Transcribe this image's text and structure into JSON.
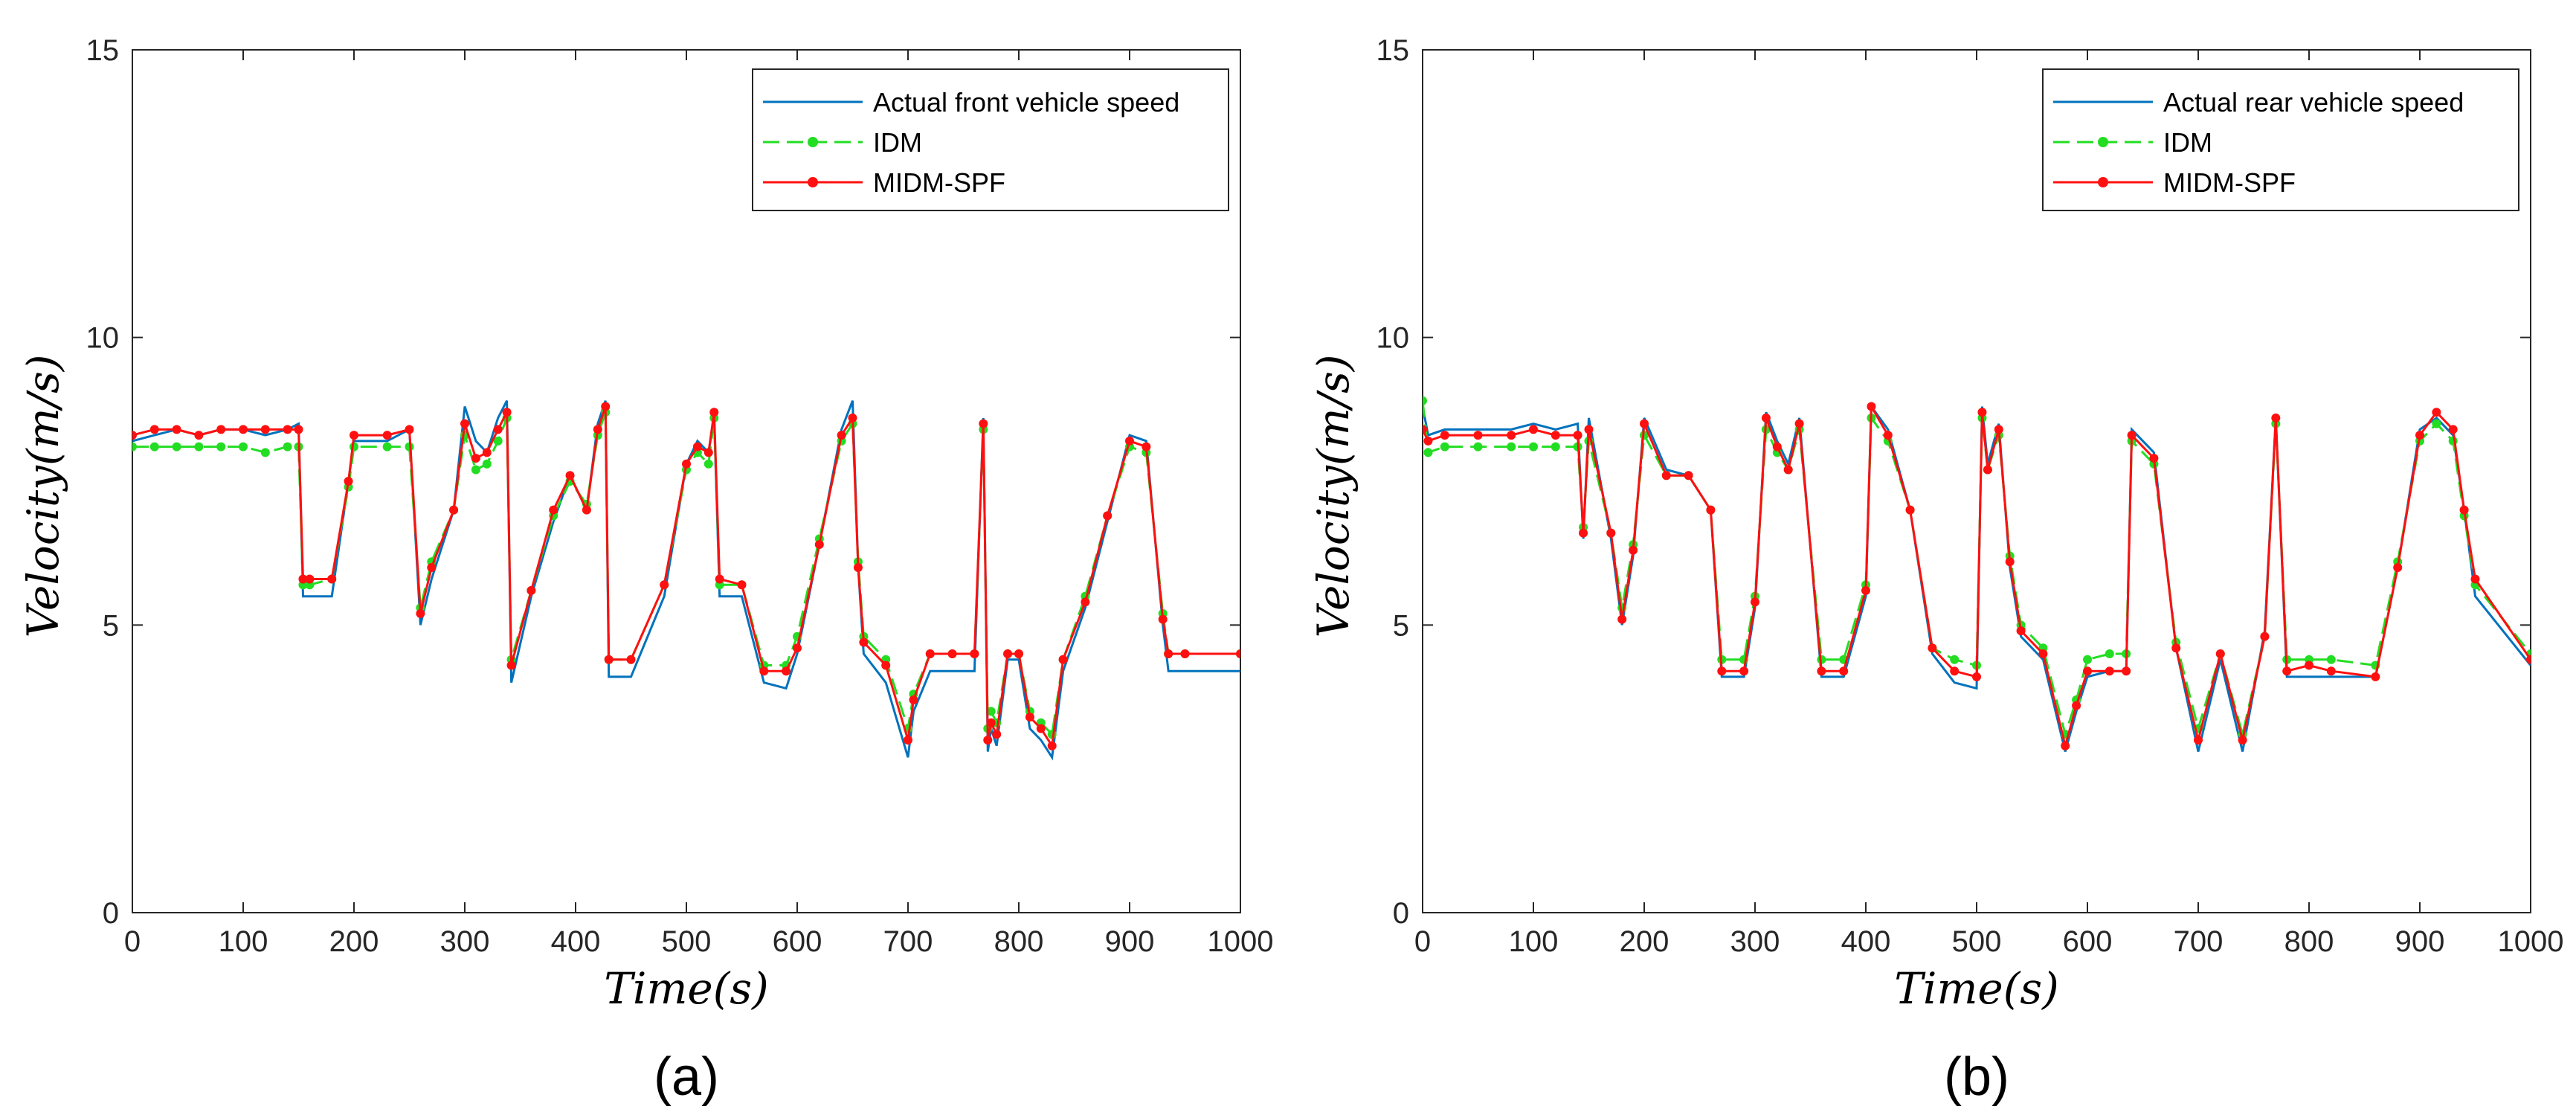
{
  "colors": {
    "actual": "#0072BD",
    "idm": "#22DD22",
    "midm": "#FF1010"
  },
  "chart_data": [
    {
      "type": "line",
      "panel_label": "(a)",
      "xlabel": "Time(s)",
      "ylabel": "Velocity(m/s)",
      "xlim": [
        0,
        1000
      ],
      "ylim": [
        0,
        15
      ],
      "xticks": [
        0,
        100,
        200,
        300,
        400,
        500,
        600,
        700,
        800,
        900,
        1000
      ],
      "yticks": [
        0,
        5,
        10,
        15
      ],
      "legend": {
        "position": "top-right",
        "entries": [
          "Actual front vehicle speed",
          "IDM",
          "MIDM-SPF"
        ]
      },
      "series": [
        {
          "name": "Actual front vehicle speed",
          "role": "actual",
          "x": [
            0,
            20,
            40,
            60,
            80,
            100,
            120,
            140,
            150,
            154,
            160,
            180,
            195,
            200,
            230,
            250,
            260,
            270,
            290,
            300,
            310,
            320,
            330,
            338,
            342,
            360,
            380,
            395,
            410,
            420,
            427,
            430,
            450,
            480,
            500,
            510,
            520,
            525,
            530,
            550,
            570,
            590,
            600,
            620,
            640,
            650,
            655,
            660,
            680,
            700,
            705,
            720,
            740,
            760,
            768,
            772,
            775,
            780,
            790,
            800,
            810,
            820,
            830,
            840,
            860,
            880,
            900,
            915,
            930,
            935,
            950,
            1000
          ],
          "y": [
            8.2,
            8.3,
            8.4,
            8.3,
            8.4,
            8.4,
            8.3,
            8.4,
            8.5,
            5.5,
            5.5,
            5.5,
            7.5,
            8.2,
            8.2,
            8.4,
            5.0,
            5.8,
            7.0,
            8.8,
            8.2,
            8.0,
            8.6,
            8.9,
            4.0,
            5.5,
            6.8,
            7.6,
            7.0,
            8.5,
            8.9,
            4.1,
            4.1,
            5.5,
            7.8,
            8.2,
            8.0,
            8.6,
            5.5,
            5.5,
            4.0,
            3.9,
            4.5,
            6.4,
            8.4,
            8.9,
            6.0,
            4.5,
            4.0,
            2.7,
            3.5,
            4.2,
            4.2,
            4.2,
            8.6,
            2.8,
            3.2,
            2.9,
            4.4,
            4.4,
            3.2,
            3.0,
            2.7,
            4.2,
            5.3,
            6.8,
            8.3,
            8.2,
            5.0,
            4.2,
            4.2,
            4.2
          ]
        },
        {
          "name": "IDM",
          "role": "idm",
          "x": [
            0,
            20,
            40,
            60,
            80,
            100,
            120,
            140,
            150,
            154,
            160,
            180,
            195,
            200,
            230,
            250,
            260,
            270,
            290,
            300,
            310,
            320,
            330,
            338,
            342,
            360,
            380,
            395,
            410,
            420,
            427,
            430,
            450,
            480,
            500,
            510,
            520,
            525,
            530,
            550,
            570,
            590,
            600,
            620,
            640,
            650,
            655,
            660,
            680,
            700,
            705,
            720,
            740,
            760,
            768,
            772,
            775,
            780,
            790,
            800,
            810,
            820,
            830,
            840,
            860,
            880,
            900,
            915,
            930,
            935,
            950,
            1000
          ],
          "y": [
            8.1,
            8.1,
            8.1,
            8.1,
            8.1,
            8.1,
            8.0,
            8.1,
            8.1,
            5.7,
            5.7,
            5.8,
            7.4,
            8.1,
            8.1,
            8.1,
            5.3,
            6.1,
            7.0,
            8.3,
            7.7,
            7.8,
            8.2,
            8.6,
            4.4,
            5.6,
            6.9,
            7.5,
            7.1,
            8.3,
            8.7,
            4.4,
            4.4,
            5.7,
            7.7,
            8.0,
            7.8,
            8.6,
            5.7,
            5.7,
            4.3,
            4.3,
            4.8,
            6.5,
            8.2,
            8.5,
            6.1,
            4.8,
            4.4,
            3.2,
            3.8,
            4.5,
            4.5,
            4.5,
            8.4,
            3.2,
            3.5,
            3.3,
            4.5,
            4.5,
            3.5,
            3.3,
            3.1,
            4.4,
            5.5,
            6.9,
            8.1,
            8.0,
            5.2,
            4.5,
            4.5,
            4.5
          ]
        },
        {
          "name": "MIDM-SPF",
          "role": "midm",
          "x": [
            0,
            20,
            40,
            60,
            80,
            100,
            120,
            140,
            150,
            154,
            160,
            180,
            195,
            200,
            230,
            250,
            260,
            270,
            290,
            300,
            310,
            320,
            330,
            338,
            342,
            360,
            380,
            395,
            410,
            420,
            427,
            430,
            450,
            480,
            500,
            510,
            520,
            525,
            530,
            550,
            570,
            590,
            600,
            620,
            640,
            650,
            655,
            660,
            680,
            700,
            705,
            720,
            740,
            760,
            768,
            772,
            775,
            780,
            790,
            800,
            810,
            820,
            830,
            840,
            860,
            880,
            900,
            915,
            930,
            935,
            950,
            1000
          ],
          "y": [
            8.3,
            8.4,
            8.4,
            8.3,
            8.4,
            8.4,
            8.4,
            8.4,
            8.4,
            5.8,
            5.8,
            5.8,
            7.5,
            8.3,
            8.3,
            8.4,
            5.2,
            6.0,
            7.0,
            8.5,
            7.9,
            8.0,
            8.4,
            8.7,
            4.3,
            5.6,
            7.0,
            7.6,
            7.0,
            8.4,
            8.8,
            4.4,
            4.4,
            5.7,
            7.8,
            8.1,
            8.0,
            8.7,
            5.8,
            5.7,
            4.2,
            4.2,
            4.6,
            6.4,
            8.3,
            8.6,
            6.0,
            4.7,
            4.3,
            3.0,
            3.7,
            4.5,
            4.5,
            4.5,
            8.5,
            3.0,
            3.3,
            3.1,
            4.5,
            4.5,
            3.4,
            3.2,
            2.9,
            4.4,
            5.4,
            6.9,
            8.2,
            8.1,
            5.1,
            4.5,
            4.5,
            4.5
          ]
        }
      ]
    },
    {
      "type": "line",
      "panel_label": "(b)",
      "xlabel": "Time(s)",
      "ylabel": "Velocity(m/s)",
      "xlim": [
        0,
        1000
      ],
      "ylim": [
        0,
        15
      ],
      "xticks": [
        0,
        100,
        200,
        300,
        400,
        500,
        600,
        700,
        800,
        900,
        1000
      ],
      "yticks": [
        0,
        5,
        10,
        15
      ],
      "legend": {
        "position": "top-right",
        "entries": [
          "Actual rear vehicle speed",
          "IDM",
          "MIDM-SPF"
        ]
      },
      "series": [
        {
          "name": "Actual rear vehicle speed",
          "role": "actual",
          "x": [
            0,
            5,
            20,
            50,
            80,
            100,
            120,
            140,
            145,
            150,
            170,
            180,
            190,
            200,
            220,
            240,
            260,
            270,
            290,
            300,
            310,
            320,
            330,
            340,
            360,
            380,
            400,
            405,
            420,
            440,
            460,
            480,
            500,
            505,
            510,
            520,
            530,
            540,
            560,
            580,
            590,
            600,
            620,
            635,
            640,
            660,
            680,
            700,
            720,
            740,
            760,
            770,
            780,
            800,
            820,
            860,
            880,
            900,
            915,
            930,
            940,
            950,
            1000
          ],
          "y": [
            8.8,
            8.3,
            8.4,
            8.4,
            8.4,
            8.5,
            8.4,
            8.5,
            6.5,
            8.6,
            6.5,
            5.0,
            6.2,
            8.6,
            7.7,
            7.6,
            7.0,
            4.1,
            4.1,
            5.3,
            8.7,
            8.2,
            7.8,
            8.6,
            4.1,
            4.1,
            5.5,
            8.8,
            8.4,
            7.0,
            4.5,
            4.0,
            3.9,
            8.8,
            7.8,
            8.5,
            6.0,
            4.8,
            4.4,
            2.8,
            3.5,
            4.1,
            4.2,
            4.2,
            8.4,
            8.0,
            4.6,
            2.8,
            4.4,
            2.8,
            4.9,
            8.6,
            4.1,
            4.1,
            4.1,
            4.1,
            6.0,
            8.4,
            8.6,
            8.3,
            7.0,
            5.5,
            4.3
          ]
        },
        {
          "name": "IDM",
          "role": "idm",
          "x": [
            0,
            5,
            20,
            50,
            80,
            100,
            120,
            140,
            145,
            150,
            170,
            180,
            190,
            200,
            220,
            240,
            260,
            270,
            290,
            300,
            310,
            320,
            330,
            340,
            360,
            380,
            400,
            405,
            420,
            440,
            460,
            480,
            500,
            505,
            510,
            520,
            530,
            540,
            560,
            580,
            590,
            600,
            620,
            635,
            640,
            660,
            680,
            700,
            720,
            740,
            760,
            770,
            780,
            800,
            820,
            860,
            880,
            900,
            915,
            930,
            940,
            950,
            1000
          ],
          "y": [
            8.9,
            8.0,
            8.1,
            8.1,
            8.1,
            8.1,
            8.1,
            8.1,
            6.7,
            8.2,
            6.6,
            5.3,
            6.4,
            8.3,
            7.6,
            7.6,
            7.0,
            4.4,
            4.4,
            5.5,
            8.4,
            8.0,
            7.7,
            8.4,
            4.4,
            4.4,
            5.7,
            8.6,
            8.2,
            7.0,
            4.6,
            4.4,
            4.3,
            8.6,
            7.7,
            8.3,
            6.2,
            5.0,
            4.6,
            3.1,
            3.7,
            4.4,
            4.5,
            4.5,
            8.2,
            7.8,
            4.7,
            3.2,
            4.5,
            3.1,
            4.8,
            8.5,
            4.4,
            4.4,
            4.4,
            4.3,
            6.1,
            8.2,
            8.5,
            8.2,
            6.9,
            5.7,
            4.5
          ]
        },
        {
          "name": "MIDM-SPF",
          "role": "midm",
          "x": [
            0,
            5,
            20,
            50,
            80,
            100,
            120,
            140,
            145,
            150,
            170,
            180,
            190,
            200,
            220,
            240,
            260,
            270,
            290,
            300,
            310,
            320,
            330,
            340,
            360,
            380,
            400,
            405,
            420,
            440,
            460,
            480,
            500,
            505,
            510,
            520,
            530,
            540,
            560,
            580,
            590,
            600,
            620,
            635,
            640,
            660,
            680,
            700,
            720,
            740,
            760,
            770,
            780,
            800,
            820,
            860,
            880,
            900,
            915,
            930,
            940,
            950,
            1000
          ],
          "y": [
            8.4,
            8.2,
            8.3,
            8.3,
            8.3,
            8.4,
            8.3,
            8.3,
            6.6,
            8.4,
            6.6,
            5.1,
            6.3,
            8.5,
            7.6,
            7.6,
            7.0,
            4.2,
            4.2,
            5.4,
            8.6,
            8.1,
            7.7,
            8.5,
            4.2,
            4.2,
            5.6,
            8.8,
            8.3,
            7.0,
            4.6,
            4.2,
            4.1,
            8.7,
            7.7,
            8.4,
            6.1,
            4.9,
            4.5,
            2.9,
            3.6,
            4.2,
            4.2,
            4.2,
            8.3,
            7.9,
            4.6,
            3.0,
            4.5,
            3.0,
            4.8,
            8.6,
            4.2,
            4.3,
            4.2,
            4.1,
            6.0,
            8.3,
            8.7,
            8.4,
            7.0,
            5.8,
            4.4
          ]
        }
      ]
    }
  ]
}
